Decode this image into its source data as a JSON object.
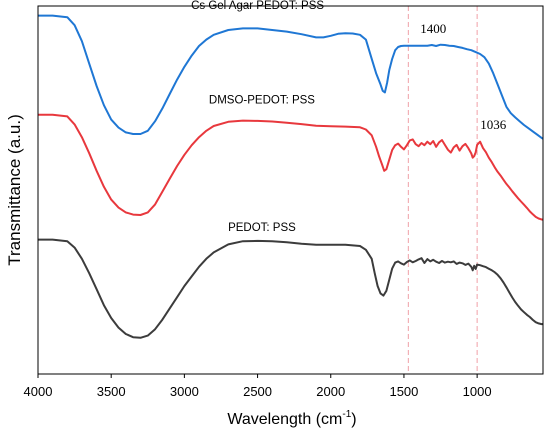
{
  "chart_data": {
    "type": "line",
    "xlabel": "Wavelength (cm",
    "xlabel_sup": "-1",
    "xlabel_close": ")",
    "ylabel": "Transmittance (a.u.)",
    "xlim": [
      4000,
      550
    ],
    "x_reversed": true,
    "y_ticks_shown": false,
    "grid": false,
    "x_ticks": [
      "4000",
      "3500",
      "3000",
      "2500",
      "2000",
      "1500",
      "1000"
    ],
    "x_tick_values": [
      4000,
      3500,
      3000,
      2500,
      2000,
      1500,
      1000
    ],
    "reference_lines": [
      {
        "x": 1470,
        "color": "#f0a0a8",
        "style": "dashed"
      },
      {
        "x": 1000,
        "color": "#f0a0a8",
        "style": "dashed"
      }
    ],
    "annotations": [
      {
        "text": "1400",
        "x": 1300
      },
      {
        "text": "1036",
        "x": 890
      }
    ],
    "series": [
      {
        "name": "Cs Gel Agar PEDOT: PSS",
        "color": "#1f77d4",
        "x": [
          4000,
          3900,
          3800,
          3750,
          3700,
          3650,
          3600,
          3550,
          3500,
          3450,
          3400,
          3350,
          3300,
          3250,
          3200,
          3150,
          3100,
          3050,
          3000,
          2950,
          2900,
          2850,
          2800,
          2700,
          2600,
          2500,
          2400,
          2300,
          2200,
          2100,
          2050,
          2000,
          1950,
          1900,
          1850,
          1800,
          1760,
          1720,
          1690,
          1660,
          1645,
          1630,
          1615,
          1600,
          1580,
          1560,
          1540,
          1520,
          1500,
          1470,
          1440,
          1400,
          1370,
          1340,
          1310,
          1280,
          1250,
          1220,
          1190,
          1160,
          1130,
          1100,
          1070,
          1040,
          1010,
          980,
          950,
          920,
          890,
          860,
          830,
          800,
          770,
          740,
          710,
          680,
          650,
          620,
          590,
          560,
          550
        ],
        "y": [
          97,
          97,
          96.5,
          94,
          89,
          82,
          75,
          69,
          64.5,
          62,
          60.5,
          60,
          60,
          61,
          64,
          68,
          72.5,
          77,
          81,
          84.5,
          87.5,
          89.5,
          91,
          92.5,
          93,
          93,
          92.5,
          92,
          91.2,
          90.2,
          90.2,
          90.7,
          91.3,
          91.5,
          91.4,
          91,
          89.5,
          83.5,
          79,
          75.5,
          73.5,
          73,
          76,
          80,
          83.5,
          86.2,
          87.2,
          87.5,
          87.6,
          87.6,
          87.6,
          87.6,
          87.6,
          87.6,
          87.8,
          87.5,
          87.9,
          87.8,
          87.6,
          87.5,
          87.2,
          86.9,
          86.5,
          86.2,
          85.6,
          85,
          84,
          82,
          79,
          75.5,
          72,
          68.5,
          66.5,
          65.2,
          64,
          62.8,
          61.8,
          60.8,
          59.8,
          58.8,
          58.5
        ]
      },
      {
        "name": "DMSO-PEDOT: PSS",
        "color": "#e8383d",
        "x": [
          4000,
          3900,
          3800,
          3750,
          3700,
          3650,
          3600,
          3550,
          3500,
          3450,
          3400,
          3350,
          3300,
          3250,
          3200,
          3150,
          3100,
          3050,
          3000,
          2950,
          2900,
          2850,
          2800,
          2700,
          2600,
          2500,
          2400,
          2300,
          2200,
          2100,
          2000,
          1900,
          1800,
          1760,
          1720,
          1690,
          1670,
          1650,
          1635,
          1620,
          1600,
          1580,
          1560,
          1540,
          1520,
          1500,
          1480,
          1460,
          1440,
          1420,
          1400,
          1380,
          1360,
          1340,
          1320,
          1300,
          1280,
          1260,
          1240,
          1220,
          1200,
          1180,
          1160,
          1140,
          1120,
          1100,
          1080,
          1060,
          1040,
          1030,
          1020,
          1010,
          1000,
          980,
          960,
          940,
          920,
          900,
          880,
          860,
          840,
          820,
          800,
          780,
          760,
          740,
          720,
          700,
          680,
          660,
          640,
          620,
          600,
          580,
          560,
          550
        ],
        "y": [
          66,
          66,
          65.5,
          63,
          59,
          54,
          48.5,
          43.5,
          39.5,
          37,
          35.5,
          34.8,
          34.7,
          35.5,
          38,
          42,
          46,
          50,
          53.5,
          56.5,
          59,
          61,
          62.5,
          63.8,
          64.2,
          64.1,
          63.9,
          63.5,
          63.1,
          62.6,
          62.4,
          62.3,
          62.1,
          61.4,
          59.6,
          56,
          53,
          50.5,
          48.5,
          49,
          52,
          55,
          56.5,
          57,
          56,
          55.2,
          56.5,
          58,
          58.3,
          56.8,
          56.2,
          57.2,
          56.5,
          57.6,
          56.8,
          57.8,
          56,
          57.4,
          58.1,
          56.6,
          55.1,
          54.2,
          55.8,
          56.6,
          54.8,
          56.2,
          56.9,
          55.6,
          53.9,
          52.6,
          53.1,
          54.3,
          56.6,
          57.6,
          55.6,
          54.3,
          52.6,
          51.2,
          49.6,
          48.2,
          47,
          45.7,
          44.4,
          43.3,
          42.1,
          41,
          39.9,
          38.9,
          37.9,
          36.9,
          35.8,
          34.9,
          34.1,
          33.6,
          33.3,
          33.2
        ]
      },
      {
        "name": "PEDOT: PSS",
        "color": "#3c3c3c",
        "x": [
          4000,
          3900,
          3800,
          3750,
          3700,
          3650,
          3600,
          3550,
          3500,
          3450,
          3400,
          3350,
          3300,
          3250,
          3200,
          3150,
          3100,
          3050,
          3000,
          2950,
          2900,
          2850,
          2800,
          2700,
          2600,
          2500,
          2400,
          2300,
          2200,
          2100,
          2000,
          1900,
          1800,
          1760,
          1720,
          1700,
          1680,
          1660,
          1640,
          1620,
          1600,
          1580,
          1560,
          1540,
          1520,
          1500,
          1480,
          1460,
          1440,
          1420,
          1400,
          1380,
          1360,
          1340,
          1320,
          1300,
          1280,
          1260,
          1240,
          1220,
          1200,
          1180,
          1160,
          1140,
          1120,
          1100,
          1080,
          1060,
          1040,
          1030,
          1020,
          1010,
          1000,
          980,
          960,
          940,
          920,
          900,
          880,
          860,
          840,
          820,
          800,
          780,
          760,
          740,
          720,
          700,
          680,
          660,
          640,
          620,
          600,
          580,
          560,
          550
        ],
        "y": [
          27,
          27,
          26.5,
          24.5,
          21,
          16.5,
          11.5,
          6.5,
          2.5,
          -0.5,
          -2.5,
          -3.5,
          -3.7,
          -3,
          -1,
          2,
          5.5,
          9,
          12.5,
          15.5,
          18.5,
          21,
          23,
          25.5,
          26.5,
          26.6,
          26.5,
          26.2,
          25.7,
          25.4,
          25.4,
          25.4,
          25,
          23.8,
          21,
          16.5,
          12.5,
          10.2,
          9.5,
          11,
          14.5,
          18,
          19.8,
          20.2,
          19.6,
          19.2,
          20,
          20.5,
          19.9,
          20.3,
          20.8,
          21.2,
          19.7,
          20.9,
          20.2,
          20.7,
          20.1,
          19.7,
          20.3,
          19.8,
          20.1,
          19.9,
          20.2,
          19.4,
          19.8,
          19.6,
          19.1,
          19.5,
          18.5,
          17.4,
          18.8,
          17.8,
          19.2,
          19,
          18.7,
          18.4,
          17.9,
          17.4,
          16.8,
          16,
          14.9,
          13.6,
          12.1,
          10.5,
          8.9,
          7.5,
          6.3,
          5.2,
          4.3,
          3.5,
          2.8,
          1.9,
          1.2,
          0.8,
          0.6,
          0.6
        ]
      }
    ]
  }
}
